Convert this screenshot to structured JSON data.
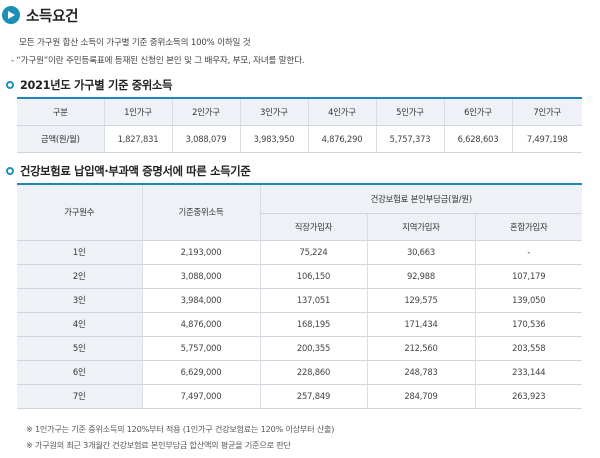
{
  "title": "소득요건",
  "description": {
    "line1": "모든 가구원 합산 소득이 가구별 기준 중위소득의 100% 이하일 것",
    "line2": "- “가구원”이란 주민등록표에 등재된 신청인 본인 및 그 배우자, 부모, 자녀를 말한다."
  },
  "section1": {
    "heading": "2021년도 가구별 기준 중위소득",
    "header_label": "구분",
    "columns": [
      "1인가구",
      "2인가구",
      "3인가구",
      "4인가구",
      "5인가구",
      "6인가구",
      "7인가구"
    ],
    "row_label": "금액(원/월)",
    "values": [
      "1,827,831",
      "3,088,079",
      "3,983,950",
      "4,876,290",
      "5,757,373",
      "6,628,603",
      "7,497,198"
    ]
  },
  "section2": {
    "heading": "건강보험료 납입액·부과액 증명서에 따른 소득기준",
    "col_household": "가구원수",
    "col_median": "기준중위소득",
    "col_group": "건강보험료 본인부담금(월/원)",
    "sub_cols": [
      "직장가입자",
      "지역가입자",
      "혼합가입자"
    ],
    "rows": [
      {
        "label": "1인",
        "median": "2,193,000",
        "work": "75,224",
        "region": "30,663",
        "mixed": "-"
      },
      {
        "label": "2인",
        "median": "3,088,000",
        "work": "106,150",
        "region": "92,988",
        "mixed": "107,179"
      },
      {
        "label": "3인",
        "median": "3,984,000",
        "work": "137,051",
        "region": "129,575",
        "mixed": "139,050"
      },
      {
        "label": "4인",
        "median": "4,876,000",
        "work": "168,195",
        "region": "171,434",
        "mixed": "170,536"
      },
      {
        "label": "5인",
        "median": "5,757,000",
        "work": "200,355",
        "region": "212,560",
        "mixed": "203,558"
      },
      {
        "label": "6인",
        "median": "6,629,000",
        "work": "228,860",
        "region": "248,783",
        "mixed": "233,144"
      },
      {
        "label": "7인",
        "median": "7,497,000",
        "work": "257,849",
        "region": "284,709",
        "mixed": "263,923"
      }
    ]
  },
  "notes": {
    "n1": "※ 1인가구는 기준 중위소득의 120%부터 적용 (1인가구 건강보험료는 120% 이상부터 산출)",
    "n2": "※ 가구원의 최근 3개월간 건강보험료 본인부담금 합산액의 평균을 기준으로 판단"
  },
  "colors": {
    "accent": "#1d87b8",
    "header_bg": "#eef1f5"
  }
}
